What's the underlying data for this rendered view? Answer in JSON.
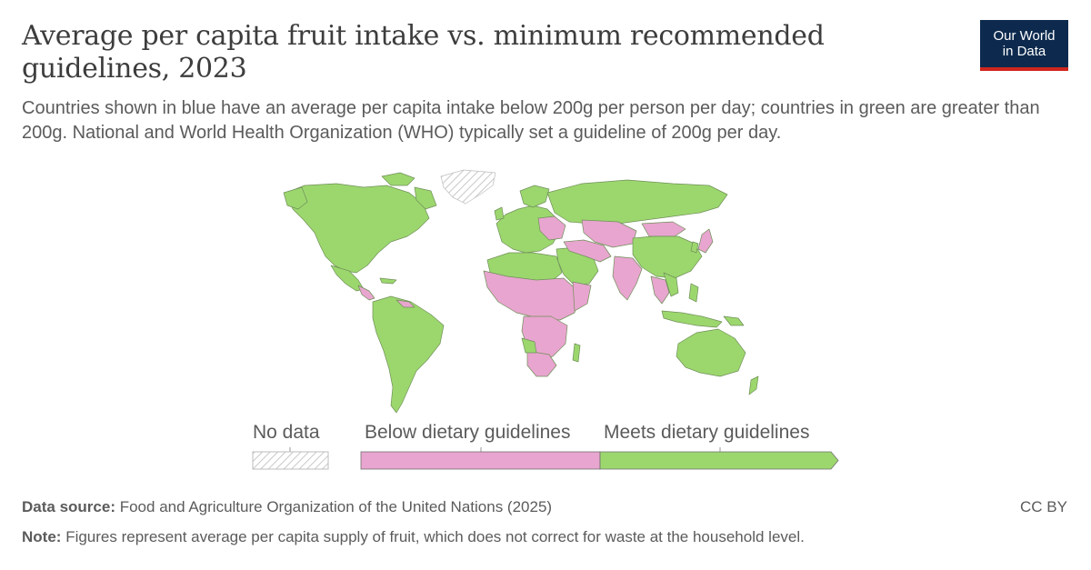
{
  "header": {
    "title": "Average per capita fruit intake vs. minimum recommended guidelines, 2023",
    "subtitle": "Countries shown in blue have an average per capita intake below 200g per person per day; countries in green are greater than 200g. National and World Health Organization (WHO) typically set a guideline of 200g per day.",
    "logo_line1": "Our World",
    "logo_line2": "in Data"
  },
  "legend": {
    "no_data": "No data",
    "below": "Below dietary guidelines",
    "meets": "Meets dietary guidelines"
  },
  "colors": {
    "below": "#e8a5cf",
    "meets": "#9cd76e",
    "border": "#6f8f58",
    "logo_bg": "#0d2a4e",
    "logo_accent": "#ce261e"
  },
  "footer": {
    "source_label": "Data source:",
    "source_text": "Food and Agriculture Organization of the United Nations (2025)",
    "note_label": "Note:",
    "note_text": "Figures represent average per capita supply of fruit, which does not correct for waste at the household level.",
    "license": "CC BY"
  }
}
